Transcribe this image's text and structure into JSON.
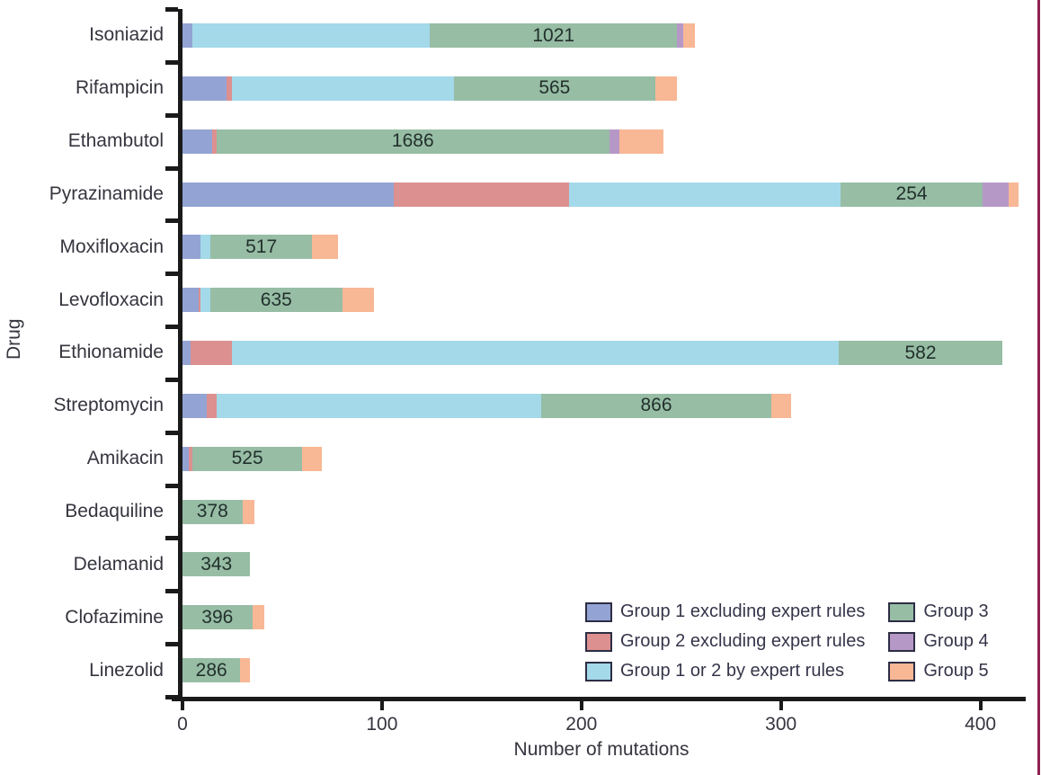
{
  "chart_data": {
    "type": "bar",
    "variant": "horizontal-stacked",
    "title": "",
    "xlabel": "Number of mutations",
    "ylabel": "Drug",
    "xlim": [
      0,
      420
    ],
    "xticks": [
      0,
      100,
      200,
      300,
      400
    ],
    "grid": false,
    "legend_position": "inside-bottom-right",
    "groups": [
      {
        "name": "Group 1 excluding expert rules",
        "color": "#93a3d3"
      },
      {
        "name": "Group 2 excluding expert rules",
        "color": "#dc9090"
      },
      {
        "name": "Group 1 or 2 by expert rules",
        "color": "#a3d9e9"
      },
      {
        "name": "Group 3",
        "color": "#97bda5"
      },
      {
        "name": "Group 4",
        "color": "#b698c7"
      },
      {
        "name": "Group 5",
        "color": "#f8b795"
      }
    ],
    "bars": [
      {
        "drug": "Isoniazid",
        "values": [
          5,
          0,
          119,
          124,
          3,
          6
        ],
        "group3_count": "1021"
      },
      {
        "drug": "Rifampicin",
        "values": [
          22,
          3,
          111,
          101,
          0,
          11
        ],
        "group3_count": "565"
      },
      {
        "drug": "Ethambutol",
        "values": [
          15,
          2,
          0,
          197,
          5,
          22
        ],
        "group3_count": "1686"
      },
      {
        "drug": "Pyrazinamide",
        "values": [
          106,
          88,
          136,
          71,
          13,
          5
        ],
        "group3_count": "254"
      },
      {
        "drug": "Moxifloxacin",
        "values": [
          9,
          0,
          5,
          51,
          0,
          13
        ],
        "group3_count": "517"
      },
      {
        "drug": "Levofloxacin",
        "values": [
          8,
          1,
          5,
          66,
          0,
          16
        ],
        "group3_count": "635"
      },
      {
        "drug": "Ethionamide",
        "values": [
          4,
          21,
          304,
          82,
          0,
          0
        ],
        "group3_count": "582"
      },
      {
        "drug": "Streptomycin",
        "values": [
          12,
          5,
          163,
          115,
          0,
          10
        ],
        "group3_count": "866"
      },
      {
        "drug": "Amikacin",
        "values": [
          3,
          2,
          0,
          55,
          0,
          10
        ],
        "group3_count": "525"
      },
      {
        "drug": "Bedaquiline",
        "values": [
          0,
          0,
          0,
          30,
          0,
          6
        ],
        "group3_count": "378"
      },
      {
        "drug": "Delamanid",
        "values": [
          0,
          0,
          0,
          34,
          0,
          0
        ],
        "group3_count": "343"
      },
      {
        "drug": "Clofazimine",
        "values": [
          0,
          0,
          0,
          35,
          0,
          6
        ],
        "group3_count": "396"
      },
      {
        "drug": "Linezolid",
        "values": [
          0,
          0,
          0,
          29,
          0,
          5
        ],
        "group3_count": "286"
      }
    ]
  },
  "style": {
    "axis_color": "#1a1a1a",
    "text_color": "#35353f",
    "value_label_color": "#22302c",
    "panel_border_color": "#8f2152",
    "legend_swatch_border": "#2d2d44"
  }
}
